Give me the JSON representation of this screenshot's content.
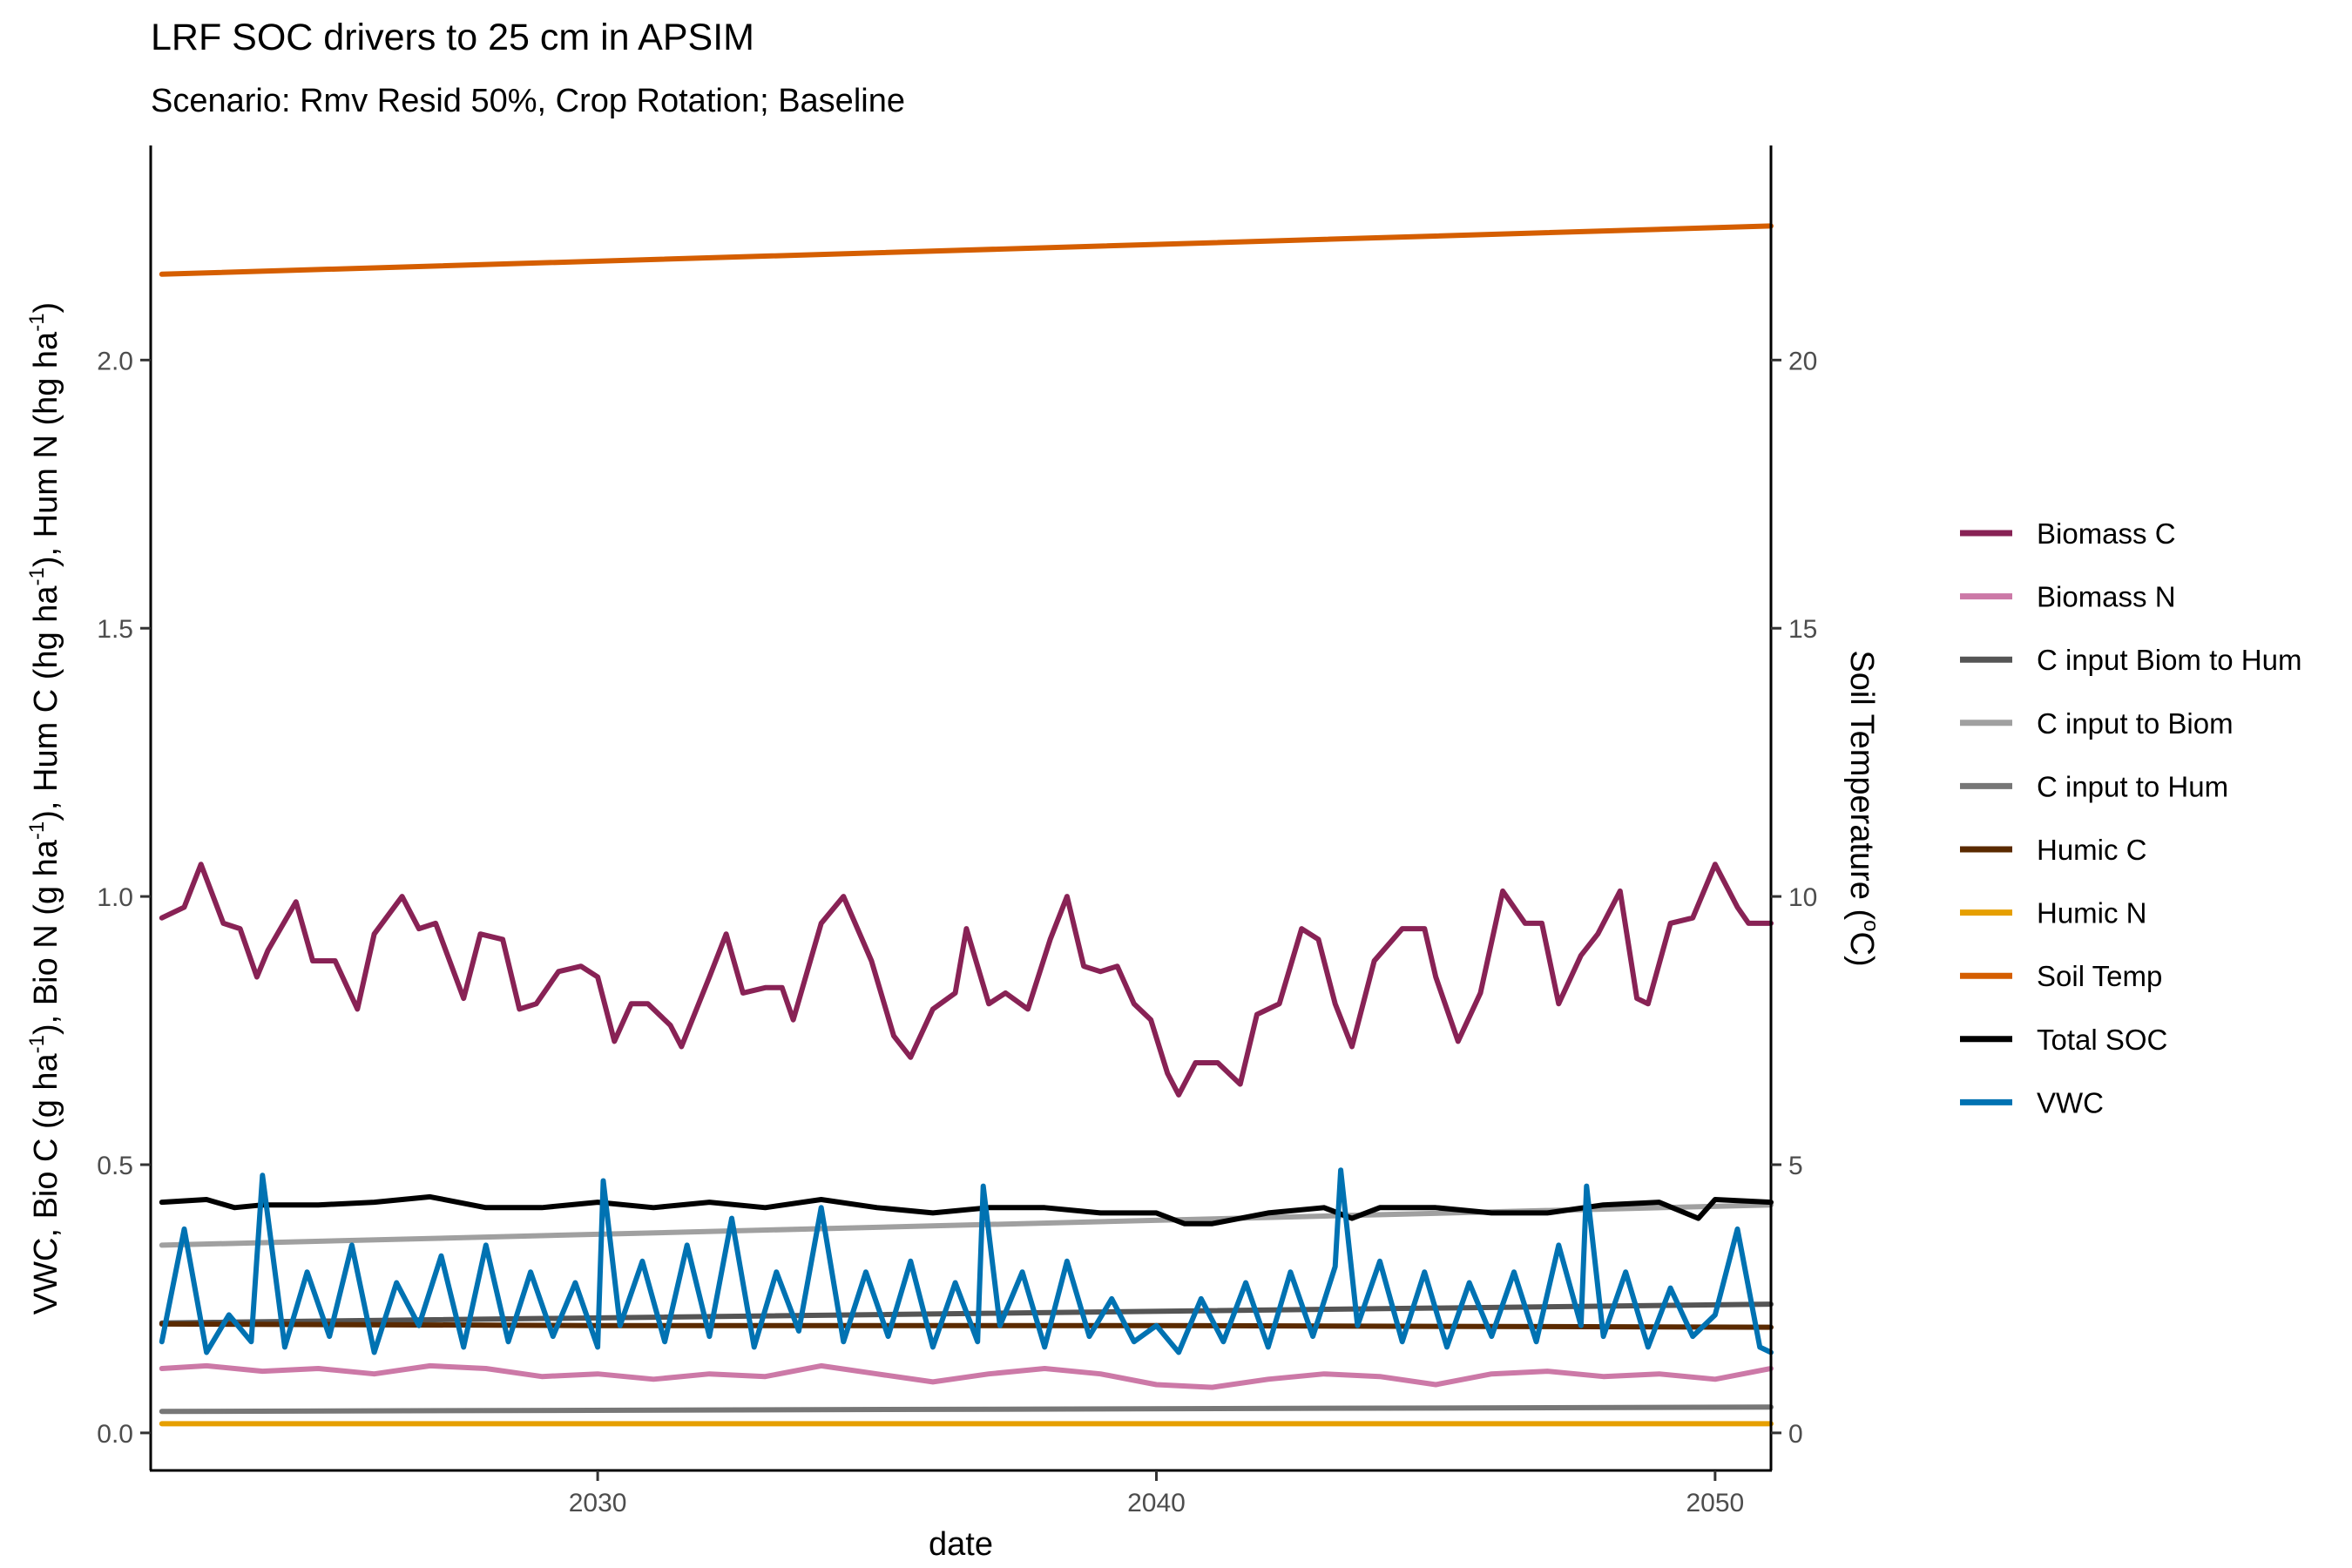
{
  "chart_data": {
    "type": "line",
    "title": "LRF SOC drivers to 25 cm in APSIM",
    "subtitle": "Scenario: Rmv Resid 50%, Crop Rotation; Baseline",
    "xlabel": "date",
    "ylabel_left": {
      "prefix": "VWC, Bio C (g ha",
      "part2": "), Bio N (g ha",
      "part3": "), Hum C (hg ha",
      "part4": "), Hum N (hg ha",
      "suffix": ")",
      "exponent": "-1"
    },
    "ylabel_right": {
      "prefix": "Soil Temperature (",
      "sup": "o",
      "suffix": "C)"
    },
    "xlim": [
      2022,
      2051
    ],
    "ylim_left": [
      -0.07,
      2.4
    ],
    "ylim_right": [
      -0.7,
      24.0
    ],
    "x_ticks": [
      2030,
      2040,
      2050
    ],
    "x_tick_labels": [
      "2030",
      "2040",
      "2050"
    ],
    "y_left_ticks": [
      0.0,
      0.5,
      1.0,
      1.5,
      2.0
    ],
    "y_left_tick_labels": [
      "0.0",
      "0.5",
      "1.0",
      "1.5",
      "2.0"
    ],
    "y_right_ticks": [
      0,
      5,
      10,
      15,
      20
    ],
    "y_right_tick_labels": [
      "0",
      "5",
      "10",
      "15",
      "20"
    ],
    "grid": false,
    "legend_position": "right",
    "legend": [
      "Biomass C",
      "Biomass N",
      "C input Biom to Hum",
      "C input to Biom",
      "C input to Hum",
      "Humic C",
      "Humic N",
      "Soil Temp",
      "Total SOC",
      "VWC"
    ],
    "series": [
      {
        "name": "Biomass C",
        "color": "#882255",
        "axis": "left",
        "x": [
          2022.2,
          2022.6,
          2022.9,
          2023.3,
          2023.6,
          2023.9,
          2024.1,
          2024.6,
          2024.9,
          2025.3,
          2025.7,
          2026.0,
          2026.5,
          2026.8,
          2027.1,
          2027.6,
          2027.9,
          2028.3,
          2028.6,
          2028.9,
          2029.3,
          2029.7,
          2030.0,
          2030.3,
          2030.6,
          2030.9,
          2031.3,
          2031.5,
          2032.0,
          2032.3,
          2032.6,
          2033.0,
          2033.3,
          2033.5,
          2034.0,
          2034.4,
          2034.9,
          2035.3,
          2035.6,
          2036.0,
          2036.4,
          2036.6,
          2037.0,
          2037.3,
          2037.7,
          2038.1,
          2038.4,
          2038.7,
          2039.0,
          2039.3,
          2039.6,
          2039.9,
          2040.2,
          2040.4,
          2040.7,
          2041.1,
          2041.5,
          2041.8,
          2042.2,
          2042.6,
          2042.9,
          2043.2,
          2043.5,
          2043.9,
          2044.4,
          2044.8,
          2045.0,
          2045.4,
          2045.8,
          2046.2,
          2046.6,
          2046.9,
          2047.2,
          2047.6,
          2047.9,
          2048.3,
          2048.6,
          2048.8,
          2049.2,
          2049.6,
          2050.0,
          2050.4,
          2050.6,
          2051.0
        ],
        "y": [
          0.96,
          0.98,
          1.06,
          0.95,
          0.94,
          0.85,
          0.9,
          0.99,
          0.88,
          0.88,
          0.79,
          0.93,
          1.0,
          0.94,
          0.95,
          0.81,
          0.93,
          0.92,
          0.79,
          0.8,
          0.86,
          0.87,
          0.85,
          0.73,
          0.8,
          0.8,
          0.76,
          0.72,
          0.85,
          0.93,
          0.82,
          0.83,
          0.83,
          0.77,
          0.95,
          1.0,
          0.88,
          0.74,
          0.7,
          0.79,
          0.82,
          0.94,
          0.8,
          0.82,
          0.79,
          0.92,
          1.0,
          0.87,
          0.86,
          0.87,
          0.8,
          0.77,
          0.67,
          0.63,
          0.69,
          0.69,
          0.65,
          0.78,
          0.8,
          0.94,
          0.92,
          0.8,
          0.72,
          0.88,
          0.94,
          0.94,
          0.85,
          0.73,
          0.82,
          1.01,
          0.95,
          0.95,
          0.8,
          0.89,
          0.93,
          1.01,
          0.81,
          0.8,
          0.95,
          0.96,
          1.06,
          0.98,
          0.95,
          0.95
        ]
      },
      {
        "name": "Biomass N",
        "color": "#CC79A7",
        "axis": "left",
        "x": [
          2022.2,
          2023.0,
          2024.0,
          2025.0,
          2026.0,
          2027.0,
          2028.0,
          2029.0,
          2030.0,
          2031.0,
          2032.0,
          2033.0,
          2034.0,
          2035.0,
          2036.0,
          2037.0,
          2038.0,
          2039.0,
          2040.0,
          2041.0,
          2042.0,
          2043.0,
          2044.0,
          2045.0,
          2046.0,
          2047.0,
          2048.0,
          2049.0,
          2050.0,
          2051.0
        ],
        "y": [
          0.12,
          0.125,
          0.115,
          0.12,
          0.11,
          0.125,
          0.12,
          0.105,
          0.11,
          0.1,
          0.11,
          0.105,
          0.125,
          0.11,
          0.095,
          0.11,
          0.12,
          0.11,
          0.09,
          0.085,
          0.1,
          0.11,
          0.105,
          0.09,
          0.11,
          0.115,
          0.105,
          0.11,
          0.1,
          0.12
        ]
      },
      {
        "name": "C input Biom to Hum",
        "color": "#555555",
        "axis": "left",
        "x": [
          2022.2,
          2051.0
        ],
        "y": [
          0.205,
          0.24
        ]
      },
      {
        "name": "C input to Biom",
        "color": "#A0A0A0",
        "axis": "left",
        "x": [
          2022.2,
          2051.0
        ],
        "y": [
          0.35,
          0.425
        ]
      },
      {
        "name": "C input to Hum",
        "color": "#777777",
        "axis": "left",
        "x": [
          2022.2,
          2051.0
        ],
        "y": [
          0.04,
          0.048
        ]
      },
      {
        "name": "Humic C",
        "color": "#5A2A00",
        "axis": "left",
        "x": [
          2022.2,
          2030.0,
          2040.0,
          2051.0
        ],
        "y": [
          0.203,
          0.2,
          0.2,
          0.197
        ]
      },
      {
        "name": "Humic N",
        "color": "#E69F00",
        "axis": "left",
        "x": [
          2022.2,
          2051.0
        ],
        "y": [
          0.017,
          0.017
        ]
      },
      {
        "name": "Soil Temp",
        "color": "#D55E00",
        "axis": "right",
        "x": [
          2022.2,
          2051.0
        ],
        "y": [
          21.6,
          22.5
        ]
      },
      {
        "name": "Total SOC",
        "color": "#000000",
        "axis": "left",
        "x": [
          2022.2,
          2023.0,
          2023.5,
          2024.0,
          2025.0,
          2026.0,
          2027.0,
          2028.0,
          2029.0,
          2030.0,
          2031.0,
          2032.0,
          2033.0,
          2034.0,
          2035.0,
          2036.0,
          2037.0,
          2038.0,
          2039.0,
          2040.0,
          2040.5,
          2041.0,
          2042.0,
          2043.0,
          2043.5,
          2044.0,
          2045.0,
          2046.0,
          2047.0,
          2048.0,
          2049.0,
          2049.7,
          2050.0,
          2051.0
        ],
        "y": [
          0.43,
          0.435,
          0.42,
          0.425,
          0.425,
          0.43,
          0.44,
          0.42,
          0.42,
          0.43,
          0.42,
          0.43,
          0.42,
          0.435,
          0.42,
          0.41,
          0.42,
          0.42,
          0.41,
          0.41,
          0.39,
          0.39,
          0.41,
          0.42,
          0.4,
          0.42,
          0.42,
          0.41,
          0.41,
          0.425,
          0.43,
          0.4,
          0.435,
          0.43
        ]
      },
      {
        "name": "VWC",
        "color": "#0072B2",
        "axis": "left",
        "x": [
          2022.2,
          2022.6,
          2023.0,
          2023.4,
          2023.8,
          2024.0,
          2024.4,
          2024.8,
          2025.2,
          2025.6,
          2026.0,
          2026.4,
          2026.8,
          2027.2,
          2027.6,
          2028.0,
          2028.4,
          2028.8,
          2029.2,
          2029.6,
          2030.0,
          2030.1,
          2030.4,
          2030.8,
          2031.2,
          2031.6,
          2032.0,
          2032.4,
          2032.8,
          2033.2,
          2033.6,
          2034.0,
          2034.4,
          2034.8,
          2035.2,
          2035.6,
          2036.0,
          2036.4,
          2036.8,
          2036.9,
          2037.2,
          2037.6,
          2038.0,
          2038.4,
          2038.8,
          2039.2,
          2039.6,
          2040.0,
          2040.4,
          2040.8,
          2041.2,
          2041.6,
          2042.0,
          2042.4,
          2042.8,
          2043.2,
          2043.3,
          2043.6,
          2044.0,
          2044.4,
          2044.8,
          2045.2,
          2045.6,
          2046.0,
          2046.4,
          2046.8,
          2047.2,
          2047.6,
          2047.7,
          2048.0,
          2048.4,
          2048.8,
          2049.2,
          2049.6,
          2050.0,
          2050.4,
          2050.8,
          2051.0
        ],
        "y": [
          0.17,
          0.38,
          0.15,
          0.22,
          0.17,
          0.48,
          0.16,
          0.3,
          0.18,
          0.35,
          0.15,
          0.28,
          0.2,
          0.33,
          0.16,
          0.35,
          0.17,
          0.3,
          0.18,
          0.28,
          0.16,
          0.47,
          0.2,
          0.32,
          0.17,
          0.35,
          0.18,
          0.4,
          0.16,
          0.3,
          0.19,
          0.42,
          0.17,
          0.3,
          0.18,
          0.32,
          0.16,
          0.28,
          0.17,
          0.46,
          0.2,
          0.3,
          0.16,
          0.32,
          0.18,
          0.25,
          0.17,
          0.2,
          0.15,
          0.25,
          0.17,
          0.28,
          0.16,
          0.3,
          0.18,
          0.31,
          0.49,
          0.2,
          0.32,
          0.17,
          0.3,
          0.16,
          0.28,
          0.18,
          0.3,
          0.17,
          0.35,
          0.2,
          0.46,
          0.18,
          0.3,
          0.16,
          0.27,
          0.18,
          0.22,
          0.38,
          0.16,
          0.15
        ]
      }
    ]
  }
}
